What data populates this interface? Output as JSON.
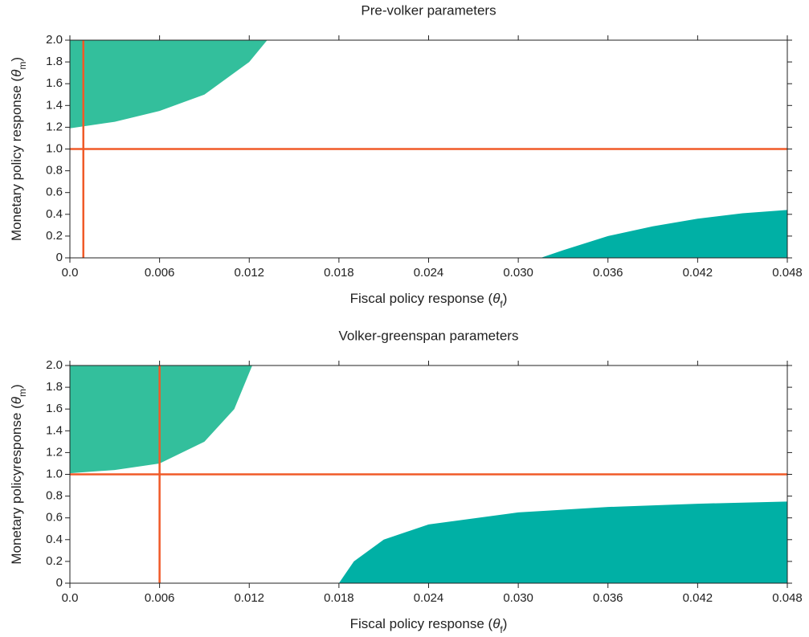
{
  "chart_data": [
    {
      "type": "region",
      "title": "Pre-volker parameters",
      "xlabel": [
        "Fiscal policy response (",
        "θ",
        "f",
        ")"
      ],
      "ylabel": [
        "Monetary policy response (",
        "θ",
        "m",
        ")"
      ],
      "xlim": [
        0,
        0.048
      ],
      "xticks": [
        {
          "value": 0,
          "label": "0.0"
        },
        0.006,
        0.012,
        0.018,
        0.024,
        {
          "value": 0.03,
          "label": "0.030"
        },
        0.036,
        0.042,
        0.048
      ],
      "ylim": [
        0,
        2
      ],
      "yticks": [
        0,
        0.2,
        0.4,
        0.6,
        0.8,
        {
          "value": 1,
          "label": "1.0"
        },
        1.2,
        1.4,
        1.6,
        1.8,
        {
          "value": 2,
          "label": "2.0"
        }
      ],
      "series": [
        {
          "color": "#33bf9c",
          "fill": "above",
          "x": [
            0,
            0.003,
            0.006,
            0.009,
            0.012,
            0.0132
          ],
          "values": [
            1.19,
            1.25,
            1.35,
            1.5,
            1.8,
            2.0
          ]
        },
        {
          "color": "#00b0a5",
          "fill": "below",
          "x": [
            0.0315,
            0.033,
            0.036,
            0.039,
            0.042,
            0.045,
            0.048
          ],
          "values": [
            0,
            0.07,
            0.2,
            0.29,
            0.36,
            0.41,
            0.44
          ]
        }
      ],
      "line_color": "#f05a28",
      "vline": 0.0009,
      "hline": 1.0
    },
    {
      "type": "region",
      "title": "Volker-greenspan parameters",
      "xlabel": [
        "Fiscal policy response (",
        "θ",
        "f",
        ")"
      ],
      "ylabel": [
        "Monetary policyresponse (",
        "θ",
        "m",
        ")"
      ],
      "xlim": [
        0,
        0.048
      ],
      "xticks": [
        {
          "value": 0,
          "label": "0.0"
        },
        0.006,
        0.012,
        0.018,
        0.024,
        {
          "value": 0.03,
          "label": "0.030"
        },
        0.036,
        0.042,
        0.048
      ],
      "ylim": [
        0,
        2
      ],
      "yticks": [
        0,
        0.2,
        0.4,
        0.6,
        0.8,
        {
          "value": 1,
          "label": "1.0"
        },
        1.2,
        1.4,
        1.6,
        1.8,
        {
          "value": 2,
          "label": "2.0"
        }
      ],
      "series": [
        {
          "color": "#33bf9c",
          "fill": "above",
          "x": [
            0,
            0.003,
            0.006,
            0.009,
            0.011,
            0.0122
          ],
          "values": [
            1.01,
            1.04,
            1.1,
            1.3,
            1.6,
            2.0
          ]
        },
        {
          "color": "#00b0a5",
          "fill": "below",
          "x": [
            0.018,
            0.019,
            0.021,
            0.024,
            0.03,
            0.036,
            0.042,
            0.048
          ],
          "values": [
            0,
            0.2,
            0.4,
            0.54,
            0.65,
            0.7,
            0.73,
            0.75
          ]
        }
      ],
      "line_color": "#f05a28",
      "vline": 0.006,
      "hline": 1.0
    }
  ]
}
